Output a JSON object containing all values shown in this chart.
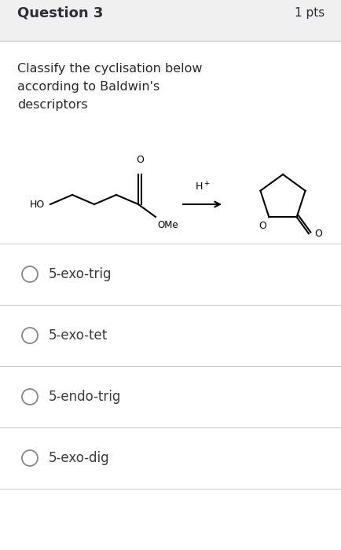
{
  "title": "Question 3",
  "pts": "1 pts",
  "question_text": "Classify the cyclisation below\naccording to Baldwin's\ndescriptors",
  "options": [
    "5-exo-trig",
    "5-exo-tet",
    "5-endo-trig",
    "5-exo-dig"
  ],
  "bg_color": "#f0f0f0",
  "content_bg": "#ffffff",
  "header_text_color": "#2d2d3a",
  "option_text_color": "#3a3a3a",
  "title_fontsize": 13,
  "pts_fontsize": 11,
  "question_fontsize": 11.5,
  "option_fontsize": 12,
  "title_font_weight": "bold",
  "separator_color": "#cccccc",
  "radio_color": "#888888"
}
